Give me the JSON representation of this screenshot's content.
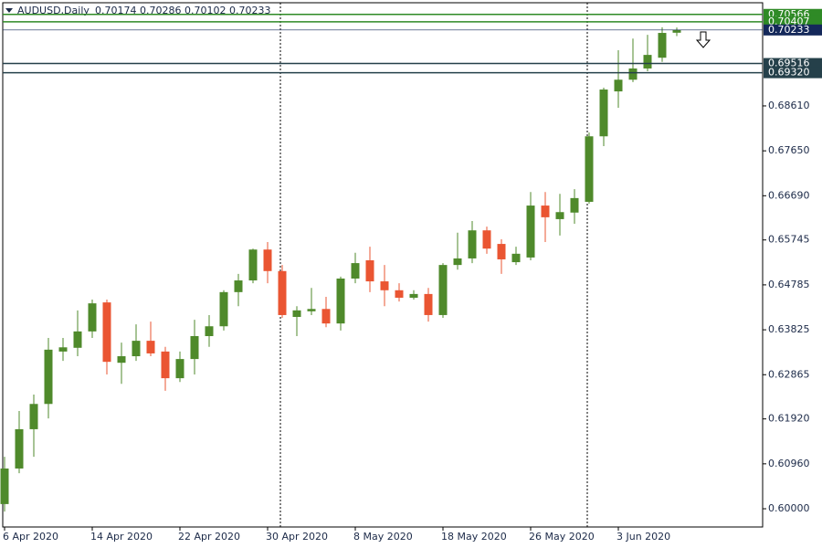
{
  "chart_data": {
    "type": "candlestick",
    "title": "AUDUSD,Daily",
    "categories": [
      "6 Apr 2020",
      null,
      null,
      null,
      null,
      null,
      "14 Apr 2020",
      null,
      null,
      null,
      null,
      null,
      "22 Apr 2020",
      null,
      null,
      null,
      null,
      null,
      "30 Apr 2020",
      null,
      null,
      null,
      null,
      null,
      "8 May 2020",
      null,
      null,
      null,
      null,
      null,
      "18 May 2020",
      null,
      null,
      null,
      null,
      null,
      "26 May 2020",
      null,
      null,
      null,
      null,
      null,
      "3 Jun 2020",
      null,
      null,
      null,
      null
    ],
    "series": {
      "up_color": "#4f8a2b",
      "down_color": "#ea5532",
      "open": [
        0.601,
        0.6086,
        0.617,
        0.6224,
        0.6336,
        0.6344,
        0.6379,
        0.6441,
        0.6312,
        0.6326,
        0.6359,
        0.6336,
        0.6279,
        0.632,
        0.6369,
        0.639,
        0.6463,
        0.6488,
        0.6554,
        0.6508,
        0.641,
        0.6422,
        0.6427,
        0.6396,
        0.6492,
        0.6531,
        0.6486,
        0.6467,
        0.6451,
        0.6459,
        0.6414,
        0.6521,
        0.6535,
        0.6595,
        0.6566,
        0.6527,
        0.6537,
        0.6648,
        0.6619,
        0.6633,
        0.6656,
        0.6796,
        0.6892,
        0.6917,
        0.6941,
        0.6964,
        0.70174
      ],
      "high": [
        0.6111,
        0.6209,
        0.6244,
        0.6365,
        0.6365,
        0.6424,
        0.6447,
        0.6447,
        0.6355,
        0.6394,
        0.64,
        0.6346,
        0.6336,
        0.6404,
        0.6414,
        0.6467,
        0.6502,
        0.6556,
        0.657,
        0.6521,
        0.6433,
        0.6472,
        0.6453,
        0.6496,
        0.6547,
        0.656,
        0.6521,
        0.6482,
        0.6467,
        0.6472,
        0.6525,
        0.659,
        0.6615,
        0.6603,
        0.6576,
        0.656,
        0.6677,
        0.6677,
        0.6673,
        0.6683,
        0.6804,
        0.69,
        0.698,
        0.7005,
        0.7013,
        0.7029,
        0.70286
      ],
      "low": [
        0.5994,
        0.6076,
        0.6111,
        0.6193,
        0.6316,
        0.6326,
        0.6365,
        0.6287,
        0.6267,
        0.6316,
        0.6326,
        0.6252,
        0.6271,
        0.6287,
        0.6346,
        0.6381,
        0.6433,
        0.6482,
        0.6482,
        0.6408,
        0.6369,
        0.6414,
        0.6388,
        0.6381,
        0.6482,
        0.6463,
        0.6433,
        0.6443,
        0.6447,
        0.64,
        0.6408,
        0.6511,
        0.6525,
        0.6545,
        0.6502,
        0.6521,
        0.6531,
        0.657,
        0.6584,
        0.6609,
        0.6652,
        0.6775,
        0.6857,
        0.6912,
        0.6935,
        0.6955,
        0.70102
      ],
      "close": [
        0.6086,
        0.617,
        0.6224,
        0.634,
        0.6345,
        0.6379,
        0.6439,
        0.6314,
        0.6326,
        0.6359,
        0.6332,
        0.6279,
        0.632,
        0.6369,
        0.639,
        0.6463,
        0.6488,
        0.6554,
        0.6508,
        0.6414,
        0.6424,
        0.6427,
        0.6396,
        0.6492,
        0.6525,
        0.6486,
        0.6467,
        0.6451,
        0.6459,
        0.6414,
        0.6521,
        0.6535,
        0.6595,
        0.6556,
        0.6533,
        0.6545,
        0.6648,
        0.6623,
        0.6634,
        0.6664,
        0.6796,
        0.6896,
        0.6917,
        0.6941,
        0.697,
        0.7017,
        0.70233
      ]
    },
    "ylim": [
      0.5961,
      0.70815
    ],
    "yticks": [
      {
        "value": 0.6,
        "label": "0.60000"
      },
      {
        "value": 0.6096,
        "label": "0.60960"
      },
      {
        "value": 0.6192,
        "label": "0.61920"
      },
      {
        "value": 0.62865,
        "label": "0.62865"
      },
      {
        "value": 0.63825,
        "label": "0.63825"
      },
      {
        "value": 0.64785,
        "label": "0.64785"
      },
      {
        "value": 0.65745,
        "label": "0.65745"
      },
      {
        "value": 0.6669,
        "label": "0.66690"
      },
      {
        "value": 0.6765,
        "label": "0.67650"
      },
      {
        "value": 0.6861,
        "label": "0.68610"
      }
    ],
    "levels": [
      {
        "value": 0.70566,
        "label": "0.70566",
        "color": "#2f8a26"
      },
      {
        "value": 0.70407,
        "label": "0.70407",
        "color": "#2f8a26"
      },
      {
        "value": 0.70233,
        "label": "0.70233",
        "color": "#14285a"
      },
      {
        "value": 0.69516,
        "label": "0.69516",
        "color": "#25404a"
      },
      {
        "value": 0.6932,
        "label": "0.69320",
        "color": "#25404a"
      }
    ]
  }
}
